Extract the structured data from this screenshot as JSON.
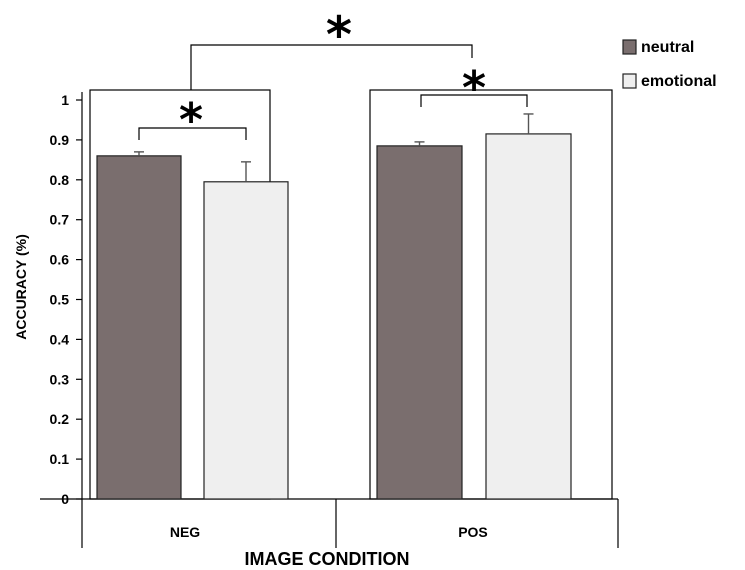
{
  "chart_data": {
    "type": "bar",
    "categories": [
      "NEG",
      "POS"
    ],
    "series": [
      {
        "name": "neutral",
        "values": [
          0.86,
          0.885
        ],
        "errors": [
          0.01,
          0.01
        ],
        "color": "#7a6e6e"
      },
      {
        "name": "emotional",
        "values": [
          0.795,
          0.915
        ],
        "errors": [
          0.05,
          0.05
        ],
        "color": "#efefef"
      }
    ],
    "xlabel": "IMAGE CONDITION",
    "ylabel": "ACCURACY (%)",
    "ylim": [
      0,
      1
    ],
    "yticks": [
      "0",
      "0.1",
      "0.2",
      "0.3",
      "0.4",
      "0.5",
      "0.6",
      "0.7",
      "0.8",
      "0.9",
      "1"
    ],
    "legend_position": "top-right",
    "significance_marker": "*",
    "grid": false
  }
}
